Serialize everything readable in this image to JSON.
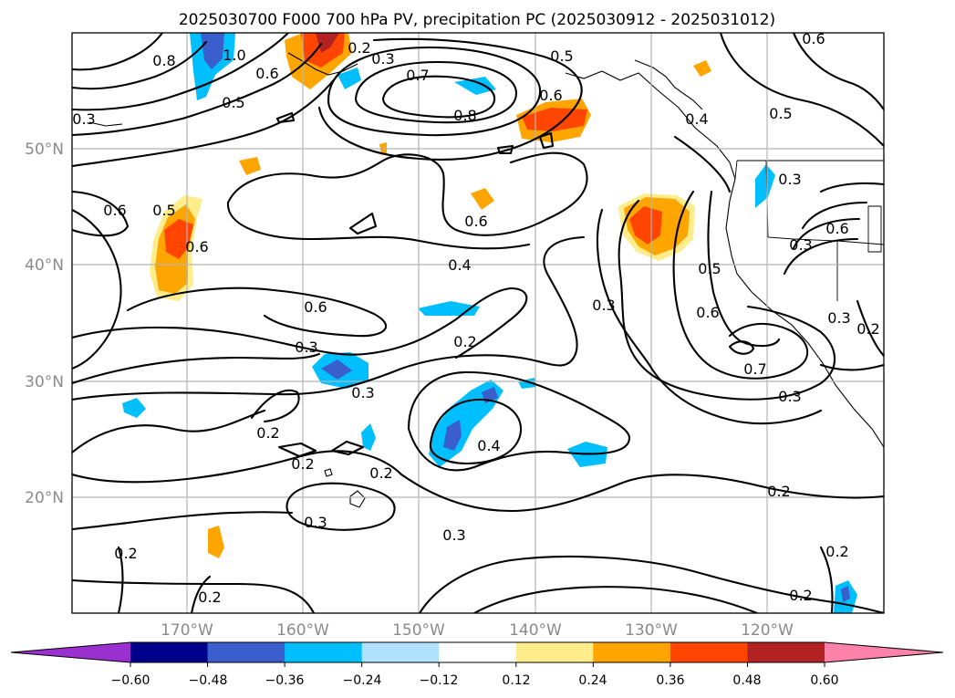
{
  "title": "2025030700 F000 700 hPa PV, precipitation PC (2025030912 - 2025031012)",
  "map": {
    "lat_labels": [
      "50°N",
      "40°N",
      "30°N",
      "20°N"
    ],
    "lon_labels": [
      "170°W",
      "160°W",
      "150°W",
      "140°W",
      "130°W",
      "120°W"
    ],
    "contour_field": "700 hPa PV",
    "contour_levels": [
      0.2,
      0.3,
      0.4,
      0.5,
      0.6,
      0.7,
      0.8,
      1.0
    ],
    "contour_labels": [
      "0.8",
      "1.0",
      "0.6",
      "0.5",
      "0.7",
      "0.8",
      "0.5",
      "0.6",
      "0.2",
      "0.3",
      "0.3",
      "0.6",
      "0.5",
      "0.6",
      "0.6",
      "0.4",
      "0.6",
      "0.3",
      "0.2",
      "0.3",
      "0.2",
      "0.2",
      "0.2",
      "0.3",
      "0.4",
      "0.3",
      "0.3",
      "0.5",
      "0.6",
      "0.7",
      "0.3",
      "0.2",
      "0.2",
      "0.2",
      "0.2",
      "0.2",
      "0.3",
      "0.6",
      "0.5",
      "0.4",
      "0.3",
      "0.2",
      "0.6",
      "0.3"
    ],
    "shading_field": "precipitation PC"
  },
  "colorbar": {
    "ticks": [
      "−0.60",
      "−0.48",
      "−0.36",
      "−0.24",
      "−0.12",
      "0.12",
      "0.24",
      "0.36",
      "0.48",
      "0.60"
    ],
    "colors": [
      "#9b30d0",
      "#00008b",
      "#3a5fcd",
      "#00bfff",
      "#b0e2ff",
      "#ffffff",
      "#ffec8b",
      "#ffa500",
      "#ff4500",
      "#b22222",
      "#ff82ab"
    ],
    "extend": "both"
  }
}
